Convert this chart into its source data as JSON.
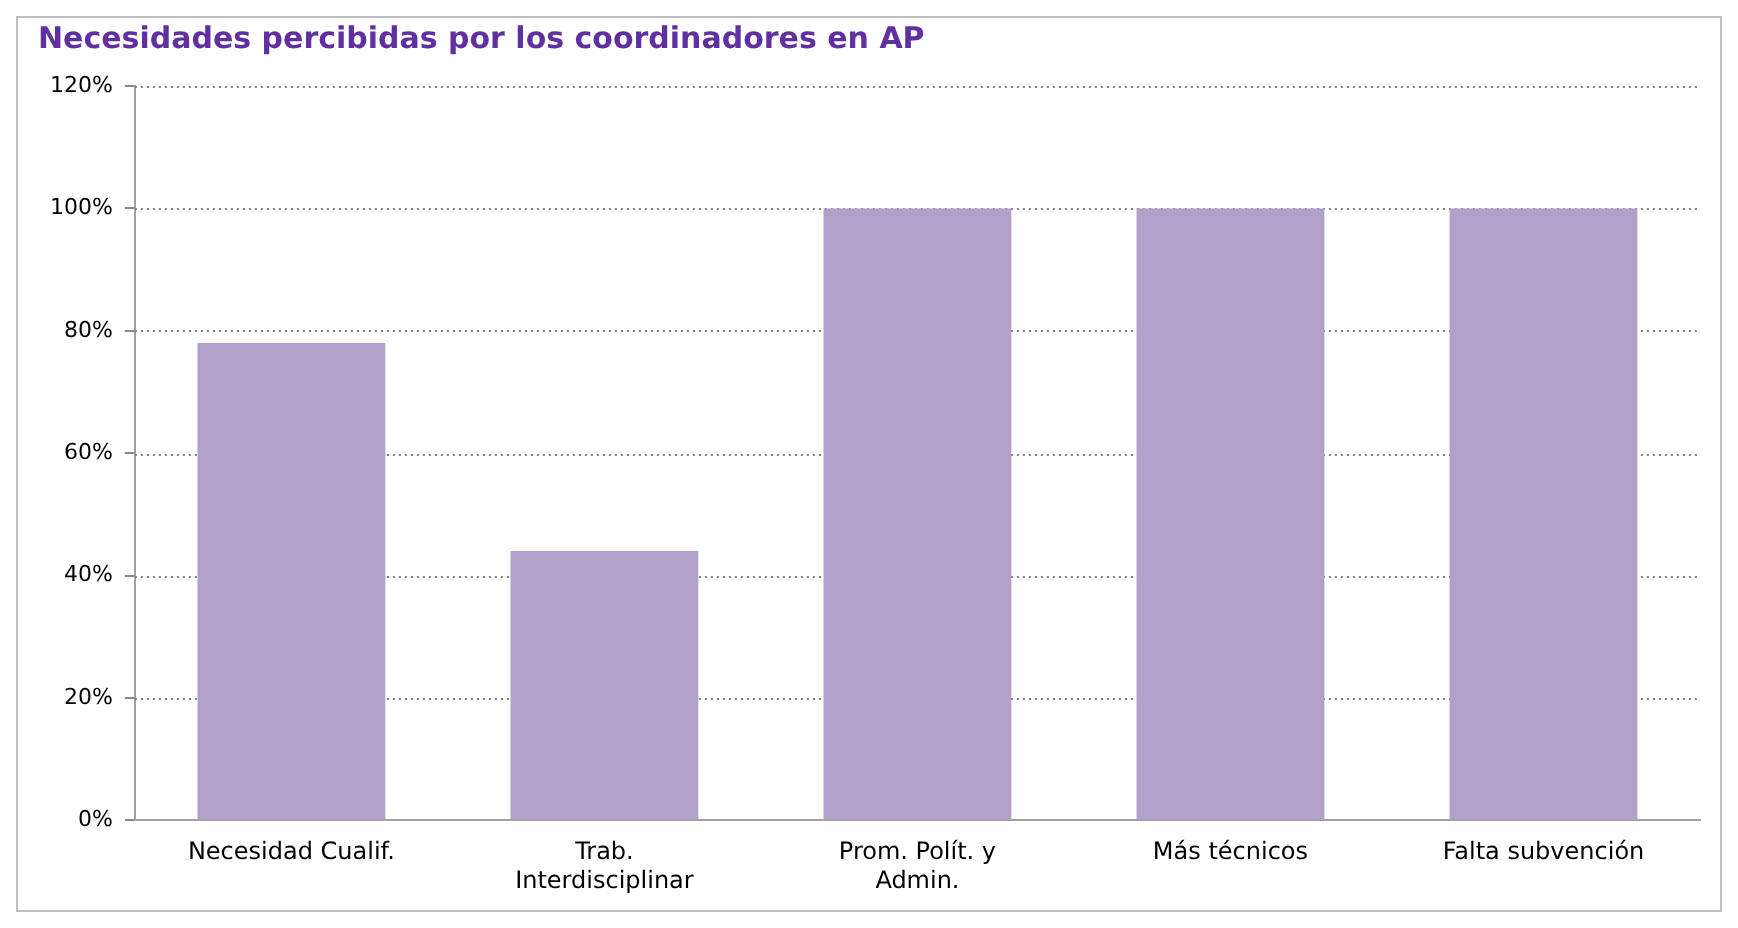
{
  "chart_data": {
    "type": "bar",
    "title": "Necesidades percibidas por los coordinadores en AP",
    "categories": [
      "Necesidad Cualif.",
      "Trab. Interdisciplinar",
      "Prom. Polít. y Admin.",
      "Más técnicos",
      "Falta subvención"
    ],
    "values": [
      78,
      44,
      100,
      100,
      100
    ],
    "color": "#b1a1c8",
    "ylim": [
      0,
      120
    ],
    "yticks": [
      {
        "value": 0,
        "label": "0%"
      },
      {
        "value": 20,
        "label": "20%"
      },
      {
        "value": 40,
        "label": "40%"
      },
      {
        "value": 60,
        "label": "60%"
      },
      {
        "value": 80,
        "label": "80%"
      },
      {
        "value": 100,
        "label": "100%"
      },
      {
        "value": 120,
        "label": "120%"
      }
    ],
    "grid": "y",
    "legend": false
  }
}
